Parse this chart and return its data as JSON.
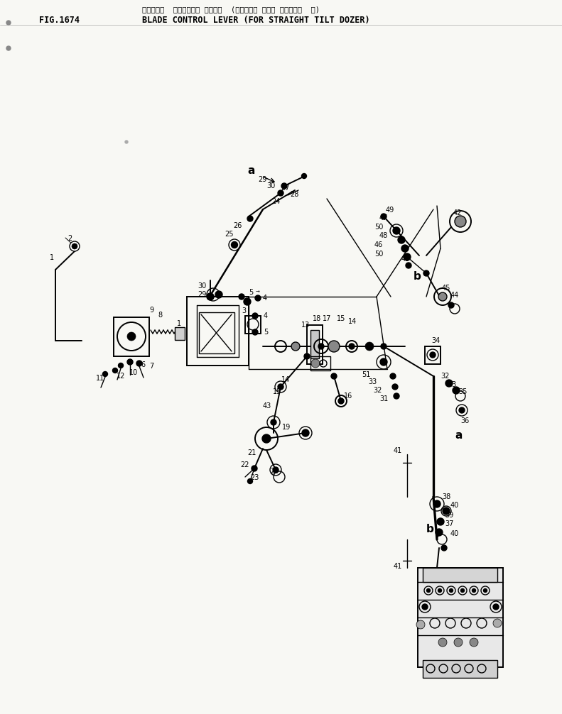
{
  "bg_color": "#f5f5f0",
  "fig_label": "FIG.1674",
  "title_jp": "ブレート゚  コントロール レパー  (ストレート チルト ト゚ーサ゚  用)",
  "title_en": "BLADE CONTROL LEVER (FOR STRAIGHT TILT DOZER)"
}
